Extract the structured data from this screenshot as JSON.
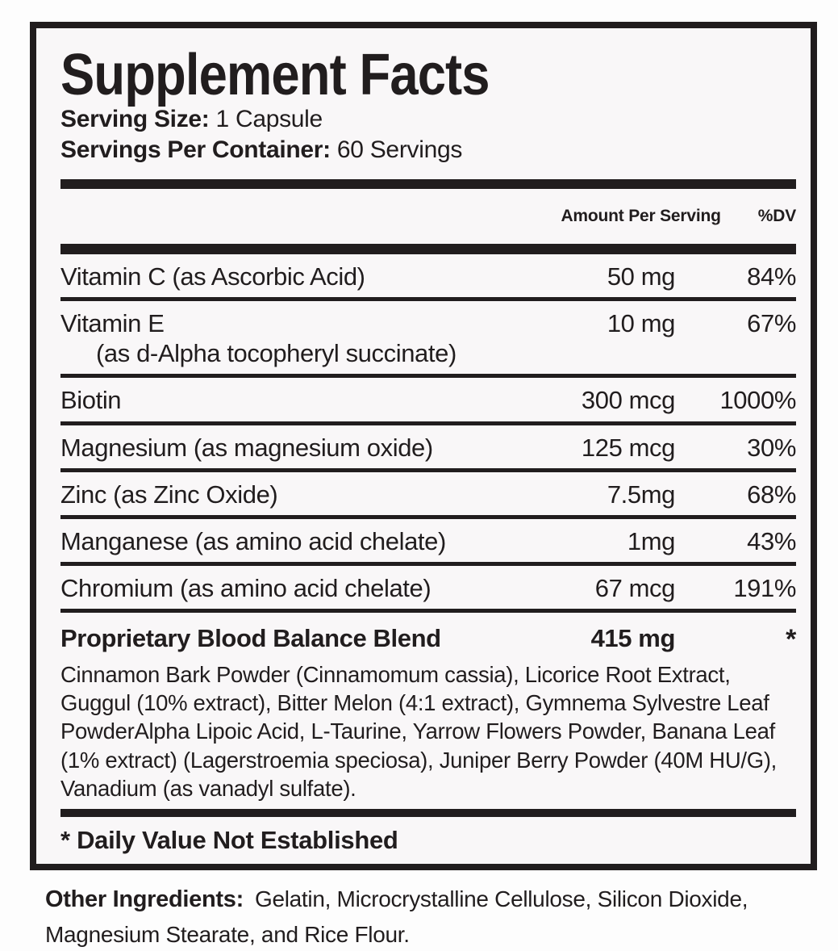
{
  "label": {
    "title": "Supplement Facts",
    "serving_size_label": "Serving Size:",
    "serving_size_value": "1 Capsule",
    "servings_per_container_label": "Servings Per Container:",
    "servings_per_container_value": "60 Servings",
    "columns": {
      "amount": "Amount Per Serving",
      "dv": "%DV"
    },
    "rows": [
      {
        "name": "Vitamin C (as Ascorbic Acid)",
        "amount": "50 mg",
        "dv": "84%"
      },
      {
        "name": "Vitamin E",
        "name2": "(as d-Alpha tocopheryl succinate)",
        "amount": "10 mg",
        "dv": "67%"
      },
      {
        "name": "Biotin",
        "amount": "300 mcg",
        "dv": "1000%"
      },
      {
        "name": "Magnesium (as magnesium oxide)",
        "amount": "125 mcg",
        "dv": "30%"
      },
      {
        "name": "Zinc (as Zinc Oxide)",
        "amount": "7.5mg",
        "dv": "68%"
      },
      {
        "name": "Manganese (as amino acid chelate)",
        "amount": "1mg",
        "dv": "43%"
      },
      {
        "name": "Chromium (as amino acid chelate)",
        "amount": "67 mcg",
        "dv": "191%"
      }
    ],
    "blend": {
      "name": "Proprietary Blood Balance Blend",
      "amount": "415 mg",
      "dv": "*",
      "ingredients": "Cinnamon Bark Powder (Cinnamomum cassia), Licorice Root Extract, Guggul (10% extract), Bitter Melon (4:1 extract), Gymnema Sylvestre Leaf PowderAlpha Lipoic Acid, L-Taurine, Yarrow Flowers Powder, Banana Leaf (1% extract) (Lagerstroemia speciosa), Juniper Berry Powder (40M HU/G), Vanadium (as vanadyl sulfate)."
    },
    "footnote": "* Daily Value Not Established",
    "colors": {
      "ink": "#211d1e",
      "paper": "#f9f7f8"
    }
  },
  "other_ingredients": {
    "label": "Other Ingredients:",
    "value": "Gelatin, Microcrystalline Cellulose, Silicon Dioxide, Magnesium Stearate, and Rice Flour."
  }
}
